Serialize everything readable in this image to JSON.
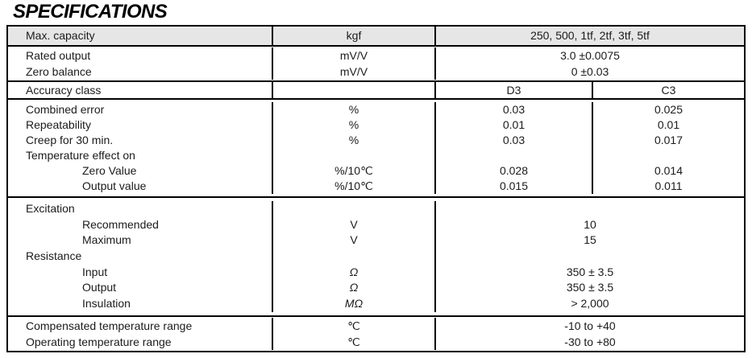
{
  "title": "SPECIFICATIONS",
  "colors": {
    "header_bg": "#e6e6e6",
    "border": "#000000",
    "text": "#1b1b1b",
    "page_bg": "#ffffff"
  },
  "table": {
    "header": {
      "param": "Max. capacity",
      "unit": "kgf",
      "capacities": "250, 500, 1tf, 2tf, 3tf, 5tf"
    },
    "output_section": {
      "rows": [
        {
          "label": "Rated output",
          "unit": "mV/V"
        },
        {
          "label": "Zero balance",
          "unit": "mV/V"
        }
      ],
      "values": [
        "3.0 ±0.0075",
        "0 ±0.03"
      ]
    },
    "accuracy_row": {
      "label": "Accuracy class",
      "unit": "",
      "class_d3": "D3",
      "class_c3": "C3"
    },
    "error_section": {
      "rows": [
        {
          "label": "Combined error",
          "unit": "%",
          "d3": "0.03",
          "c3": "0.025"
        },
        {
          "label": "Repeatability",
          "unit": "%",
          "d3": "0.01",
          "c3": "0.01"
        },
        {
          "label": "Creep for 30 min.",
          "unit": "%",
          "d3": "0.03",
          "c3": "0.017"
        },
        {
          "label": "Temperature effect on",
          "unit": "",
          "d3": "",
          "c3": ""
        },
        {
          "label": "Zero Value",
          "unit": "%/10℃",
          "d3": "0.028",
          "c3": "0.014"
        },
        {
          "label": "Output value",
          "unit": "%/10℃",
          "d3": "0.015",
          "c3": "0.011"
        }
      ]
    },
    "electrical_section": {
      "rows": [
        {
          "label": "Excitation",
          "unit": "",
          "value": ""
        },
        {
          "label": "Recommended",
          "unit": "V",
          "value": "10"
        },
        {
          "label": "Maximum",
          "unit": "V",
          "value": "15"
        },
        {
          "label": "Resistance",
          "unit": "",
          "value": ""
        },
        {
          "label": "Input",
          "unit": "Ω",
          "value": "350 ± 3.5"
        },
        {
          "label": "Output",
          "unit": "Ω",
          "value": "350 ± 3.5"
        },
        {
          "label": "Insulation",
          "unit": "MΩ",
          "value": "> 2,000"
        }
      ]
    },
    "temperature_section": {
      "rows": [
        {
          "label": "Compensated temperature range",
          "unit": "℃",
          "value": "-10 to +40"
        },
        {
          "label": "Operating temperature range",
          "unit": "℃",
          "value": "-30 to +80"
        }
      ]
    }
  }
}
